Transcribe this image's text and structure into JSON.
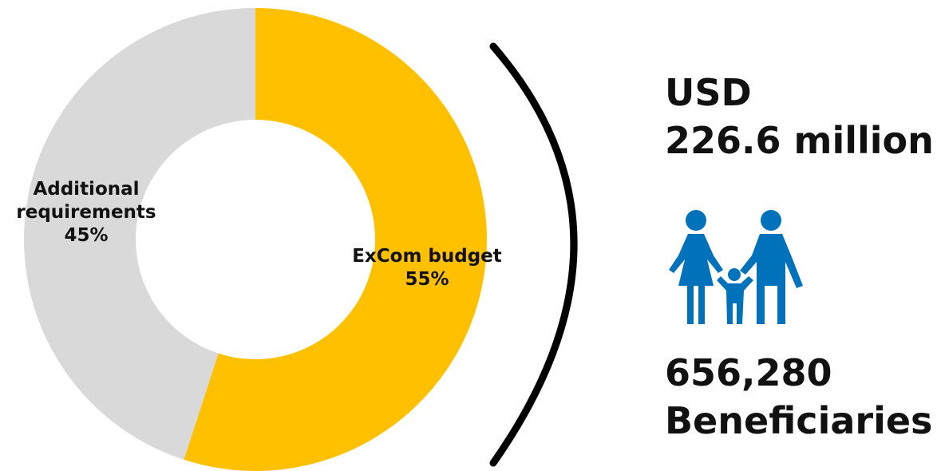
{
  "chart_data": {
    "type": "pie",
    "slices": [
      {
        "label_lines": [
          "ExCom budget"
        ],
        "pct_label": "55%",
        "value": 55,
        "color": "#FFC000"
      },
      {
        "label_lines": [
          "Additional",
          "requirements"
        ],
        "pct_label": "45%",
        "value": 45,
        "color": "#D9D9D9"
      }
    ],
    "donut": true
  },
  "stats": {
    "budget_line1": "USD",
    "budget_line2": "226.6 million",
    "beneficiaries_line1": "656,280",
    "beneficiaries_line2": "Beneficiaries"
  },
  "icons": {
    "family": "family-icon",
    "family_color": "#0072BC"
  }
}
